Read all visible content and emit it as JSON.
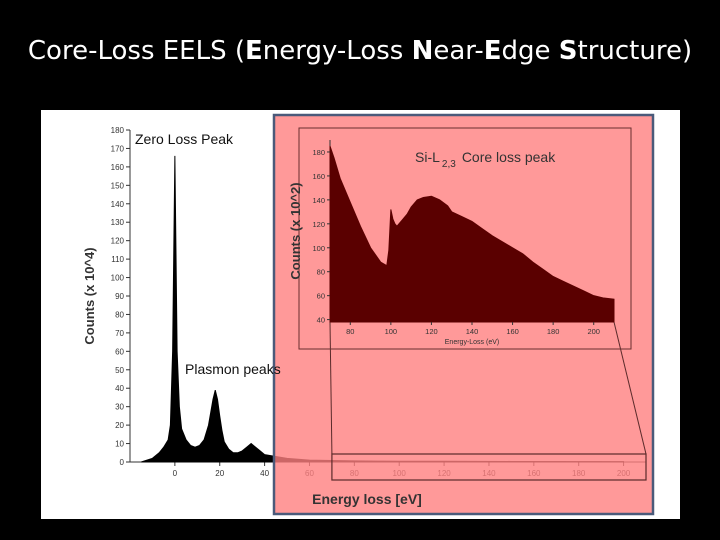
{
  "slide": {
    "title_parts": [
      {
        "text": "Core-Loss EELS (",
        "bold": false
      },
      {
        "text": "E",
        "bold": true
      },
      {
        "text": "nergy-Loss ",
        "bold": false
      },
      {
        "text": "N",
        "bold": true
      },
      {
        "text": "ear-",
        "bold": false
      },
      {
        "text": "E",
        "bold": true
      },
      {
        "text": "dge ",
        "bold": false
      },
      {
        "text": "S",
        "bold": true
      },
      {
        "text": "tructure)",
        "bold": false
      }
    ]
  },
  "chart_data": [
    {
      "type": "area",
      "title": "",
      "xlabel": "Energy loss [eV]",
      "ylabel": "Counts (x 10^4)",
      "xlim": [
        -20,
        210
      ],
      "ylim": [
        0,
        180
      ],
      "x_ticks": [
        0,
        20,
        40,
        60,
        80,
        100,
        120,
        140,
        160,
        180,
        200
      ],
      "x_tick_labels": [
        "0",
        "20",
        "40",
        "60",
        "80",
        "100",
        "120",
        "140",
        "160",
        "180",
        "200"
      ],
      "y_ticks": [
        0,
        10,
        20,
        30,
        40,
        50,
        60,
        70,
        80,
        90,
        100,
        110,
        120,
        130,
        140,
        150,
        160,
        170,
        180
      ],
      "annotations": [
        {
          "text": "Zero Loss Peak",
          "x": 0,
          "y": 175
        },
        {
          "text": "Plasmon peaks",
          "x": 20,
          "y": 47
        }
      ],
      "color": "#000000",
      "series": [
        {
          "x": [
            -15,
            -10,
            -7,
            -5,
            -3,
            -2,
            -1,
            0,
            1,
            2,
            3,
            5,
            7,
            9,
            11,
            13,
            15,
            16,
            17,
            18,
            19,
            20,
            21,
            22,
            24,
            26,
            28,
            30,
            32,
            34,
            36,
            38,
            40,
            45,
            50,
            55,
            60,
            70,
            80,
            90,
            100,
            120,
            150,
            200
          ],
          "y": [
            0,
            2,
            5,
            8,
            12,
            20,
            60,
            166,
            60,
            30,
            18,
            12,
            9,
            8,
            9,
            12,
            20,
            27,
            34,
            39,
            34,
            25,
            17,
            11,
            7,
            5,
            5,
            6,
            8,
            10,
            8,
            6,
            4,
            3,
            2,
            1.5,
            1,
            0.8,
            0.6,
            0.5,
            0.4,
            0.4,
            0.3,
            0.2
          ]
        }
      ]
    },
    {
      "type": "area",
      "title": "Si-L",
      "title_subscript": "2,3",
      "title_suffix": "Core loss peak",
      "xlabel": "Energy-Loss (eV)",
      "ylabel": "Counts (x 10^2)",
      "xlim": [
        70,
        210
      ],
      "ylim": [
        38,
        190
      ],
      "x_ticks": [
        80,
        100,
        120,
        140,
        160,
        180,
        200
      ],
      "x_tick_labels": [
        "80",
        "100",
        "120",
        "140",
        "160",
        "180",
        "200"
      ],
      "y_ticks": [
        40,
        60,
        80,
        100,
        120,
        140,
        160,
        180
      ],
      "color": "#5a0000",
      "series": [
        {
          "x": [
            70,
            72,
            75,
            80,
            85,
            90,
            95,
            98,
            99,
            100,
            101,
            102,
            103,
            105,
            108,
            110,
            113,
            116,
            120,
            124,
            128,
            130,
            135,
            140,
            145,
            150,
            155,
            160,
            165,
            170,
            175,
            180,
            185,
            190,
            195,
            200,
            205,
            210
          ],
          "y": [
            185,
            175,
            158,
            138,
            118,
            100,
            88,
            85,
            98,
            132,
            124,
            120,
            118,
            122,
            128,
            134,
            140,
            142,
            143,
            140,
            135,
            130,
            126,
            122,
            116,
            110,
            105,
            100,
            95,
            88,
            82,
            76,
            72,
            68,
            64,
            60,
            58,
            57
          ]
        }
      ]
    }
  ]
}
